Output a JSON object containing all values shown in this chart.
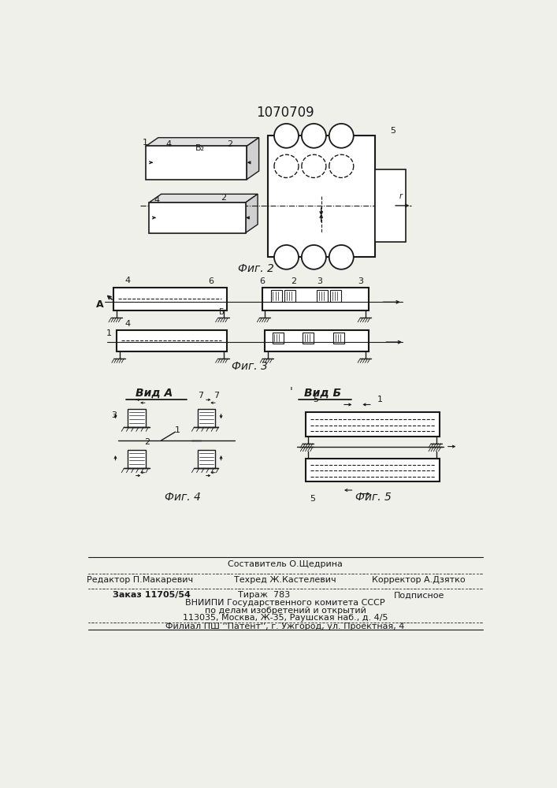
{
  "title": "1070709",
  "bg_color": "#f0f0eb",
  "line_color": "#1a1a1a",
  "fig2_label": "Фиг. 2",
  "fig3_label": "Фиг. 3",
  "fig4_label": "Фиг. 4",
  "fig5_label": "Фиг. 5",
  "vida_label": "Вид А",
  "vidb_label": "Вид Б"
}
